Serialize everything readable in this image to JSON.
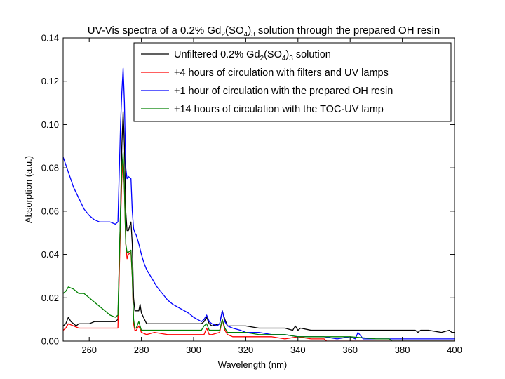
{
  "chart_data": {
    "type": "line",
    "title": {
      "pre": "UV-Vis spectra of a 0.2% Gd",
      "sub1": "2",
      "mid": "(SO",
      "sub2": "4",
      "paren": ")",
      "sub3": "3",
      "post": " solution through the prepared OH resin"
    },
    "xlabel": "Wavelength (nm)",
    "ylabel": "Absorption (a.u.)",
    "xlim": [
      250,
      400
    ],
    "ylim": [
      0,
      0.14
    ],
    "xticks": [
      260,
      280,
      300,
      320,
      340,
      360,
      380,
      400
    ],
    "xtick_labels": [
      "260",
      "280",
      "300",
      "320",
      "340",
      "360",
      "380",
      "400"
    ],
    "yticks": [
      0.0,
      0.02,
      0.04,
      0.06,
      0.08,
      0.1,
      0.12,
      0.14
    ],
    "ytick_labels": [
      "0.00",
      "0.02",
      "0.04",
      "0.06",
      "0.08",
      "0.10",
      "0.12",
      "0.14"
    ],
    "legend_location": "top-right",
    "series": [
      {
        "name": "Unfiltered 0.2% Gd2(SO4)3 solution",
        "label_parts": {
          "pre": "Unfiltered 0.2% Gd",
          "sub1": "2",
          "mid": "(SO",
          "sub2": "4",
          "paren": ")",
          "sub3": "3",
          "post": " solution"
        },
        "color": "#000000",
        "x": [
          250,
          251,
          252,
          253,
          254,
          255,
          256,
          258,
          260,
          262,
          264,
          266,
          268,
          270,
          271,
          272,
          272.5,
          273,
          273.5,
          274,
          274.5,
          275,
          276,
          276.5,
          277,
          277.5,
          278,
          279,
          279.5,
          280,
          282,
          285,
          290,
          295,
          300,
          303,
          304,
          305,
          306,
          307,
          310,
          311,
          312,
          313,
          315,
          320,
          325,
          330,
          335,
          338,
          339,
          340,
          341,
          345,
          350,
          360,
          370,
          380,
          385,
          386,
          387,
          390,
          395,
          398,
          399,
          400
        ],
        "y": [
          0.007,
          0.008,
          0.011,
          0.009,
          0.008,
          0.007,
          0.008,
          0.008,
          0.008,
          0.009,
          0.009,
          0.009,
          0.009,
          0.009,
          0.01,
          0.06,
          0.09,
          0.106,
          0.09,
          0.06,
          0.051,
          0.051,
          0.055,
          0.045,
          0.02,
          0.014,
          0.014,
          0.014,
          0.017,
          0.013,
          0.008,
          0.008,
          0.008,
          0.008,
          0.008,
          0.008,
          0.009,
          0.011,
          0.008,
          0.007,
          0.008,
          0.014,
          0.01,
          0.007,
          0.007,
          0.007,
          0.006,
          0.006,
          0.006,
          0.005,
          0.007,
          0.005,
          0.006,
          0.005,
          0.005,
          0.005,
          0.005,
          0.005,
          0.005,
          0.004,
          0.005,
          0.005,
          0.004,
          0.005,
          0.004,
          0.004
        ]
      },
      {
        "name": "+4 hours of circulation with filters and UV lamps",
        "color": "#ff0000",
        "x": [
          250,
          251,
          252,
          254,
          256,
          258,
          260,
          262,
          265,
          268,
          270,
          271,
          272,
          272.5,
          273,
          273.5,
          274,
          274.5,
          275,
          276,
          276.5,
          277,
          277.5,
          278,
          279,
          280,
          282,
          285,
          290,
          295,
          300,
          304,
          305,
          306,
          307,
          310,
          311,
          312,
          313,
          315,
          320,
          325,
          330,
          335,
          340,
          345,
          350,
          351,
          352,
          360,
          370,
          380,
          390,
          400
        ],
        "y": [
          0.005,
          0.006,
          0.008,
          0.007,
          0.006,
          0.006,
          0.006,
          0.006,
          0.006,
          0.006,
          0.006,
          0.006,
          0.055,
          0.075,
          0.085,
          0.07,
          0.045,
          0.038,
          0.04,
          0.041,
          0.03,
          0.008,
          0.005,
          0.005,
          0.007,
          0.004,
          0.003,
          0.004,
          0.003,
          0.003,
          0.003,
          0.003,
          0.006,
          0.003,
          0.003,
          0.004,
          0.01,
          0.005,
          0.003,
          0.002,
          0.002,
          0.002,
          0.002,
          0.001,
          0.002,
          0.001,
          0.001,
          0.0,
          0.0,
          0.0,
          0.0,
          0.0,
          0.0,
          0.0
        ]
      },
      {
        "name": "+1 hour of circulation with the prepared OH resin",
        "color": "#0000ff",
        "x": [
          250,
          252,
          254,
          256,
          258,
          260,
          262,
          264,
          266,
          268,
          270,
          271,
          272,
          272.5,
          273,
          273.5,
          274,
          274.5,
          275,
          276,
          276.5,
          277,
          277.5,
          278,
          279,
          280,
          281,
          282,
          284,
          286,
          288,
          290,
          292,
          295,
          298,
          300,
          303,
          304,
          305,
          306,
          307,
          309,
          310,
          311,
          312,
          313,
          315,
          318,
          320,
          325,
          330,
          335,
          340,
          345,
          350,
          355,
          360,
          362,
          363,
          365,
          370,
          375,
          380,
          390,
          400
        ],
        "y": [
          0.085,
          0.078,
          0.071,
          0.066,
          0.061,
          0.058,
          0.056,
          0.055,
          0.055,
          0.055,
          0.054,
          0.055,
          0.1,
          0.115,
          0.126,
          0.11,
          0.08,
          0.075,
          0.076,
          0.075,
          0.06,
          0.052,
          0.05,
          0.049,
          0.045,
          0.04,
          0.036,
          0.033,
          0.029,
          0.025,
          0.022,
          0.019,
          0.017,
          0.015,
          0.013,
          0.011,
          0.009,
          0.01,
          0.012,
          0.009,
          0.008,
          0.007,
          0.008,
          0.014,
          0.009,
          0.007,
          0.006,
          0.005,
          0.004,
          0.004,
          0.003,
          0.003,
          0.002,
          0.002,
          0.002,
          0.001,
          0.002,
          0.001,
          0.004,
          0.001,
          0.001,
          0.001,
          0.001,
          0.001,
          0.001
        ]
      },
      {
        "name": "+14 hours of circulation with the TOC-UV lamp",
        "color": "#008000",
        "x": [
          250,
          251,
          252,
          254,
          256,
          258,
          260,
          262,
          264,
          266,
          268,
          270,
          271,
          272,
          272.5,
          273,
          273.5,
          274,
          274.5,
          275,
          276,
          276.5,
          277,
          277.5,
          278,
          279,
          280,
          282,
          285,
          290,
          295,
          300,
          303,
          304,
          305,
          306,
          307,
          310,
          311,
          312,
          313,
          315,
          320,
          325,
          330,
          335,
          340,
          345,
          350,
          360,
          370,
          375,
          376,
          380,
          390,
          400
        ],
        "y": [
          0.022,
          0.023,
          0.025,
          0.024,
          0.022,
          0.022,
          0.02,
          0.018,
          0.016,
          0.014,
          0.012,
          0.011,
          0.012,
          0.06,
          0.08,
          0.087,
          0.07,
          0.045,
          0.041,
          0.041,
          0.042,
          0.03,
          0.01,
          0.006,
          0.006,
          0.009,
          0.005,
          0.005,
          0.005,
          0.005,
          0.005,
          0.005,
          0.005,
          0.007,
          0.008,
          0.005,
          0.005,
          0.005,
          0.01,
          0.006,
          0.004,
          0.004,
          0.004,
          0.003,
          0.003,
          0.003,
          0.002,
          0.002,
          0.002,
          0.002,
          0.001,
          0.001,
          0.0,
          0.0,
          0.0,
          0.0
        ]
      }
    ]
  }
}
